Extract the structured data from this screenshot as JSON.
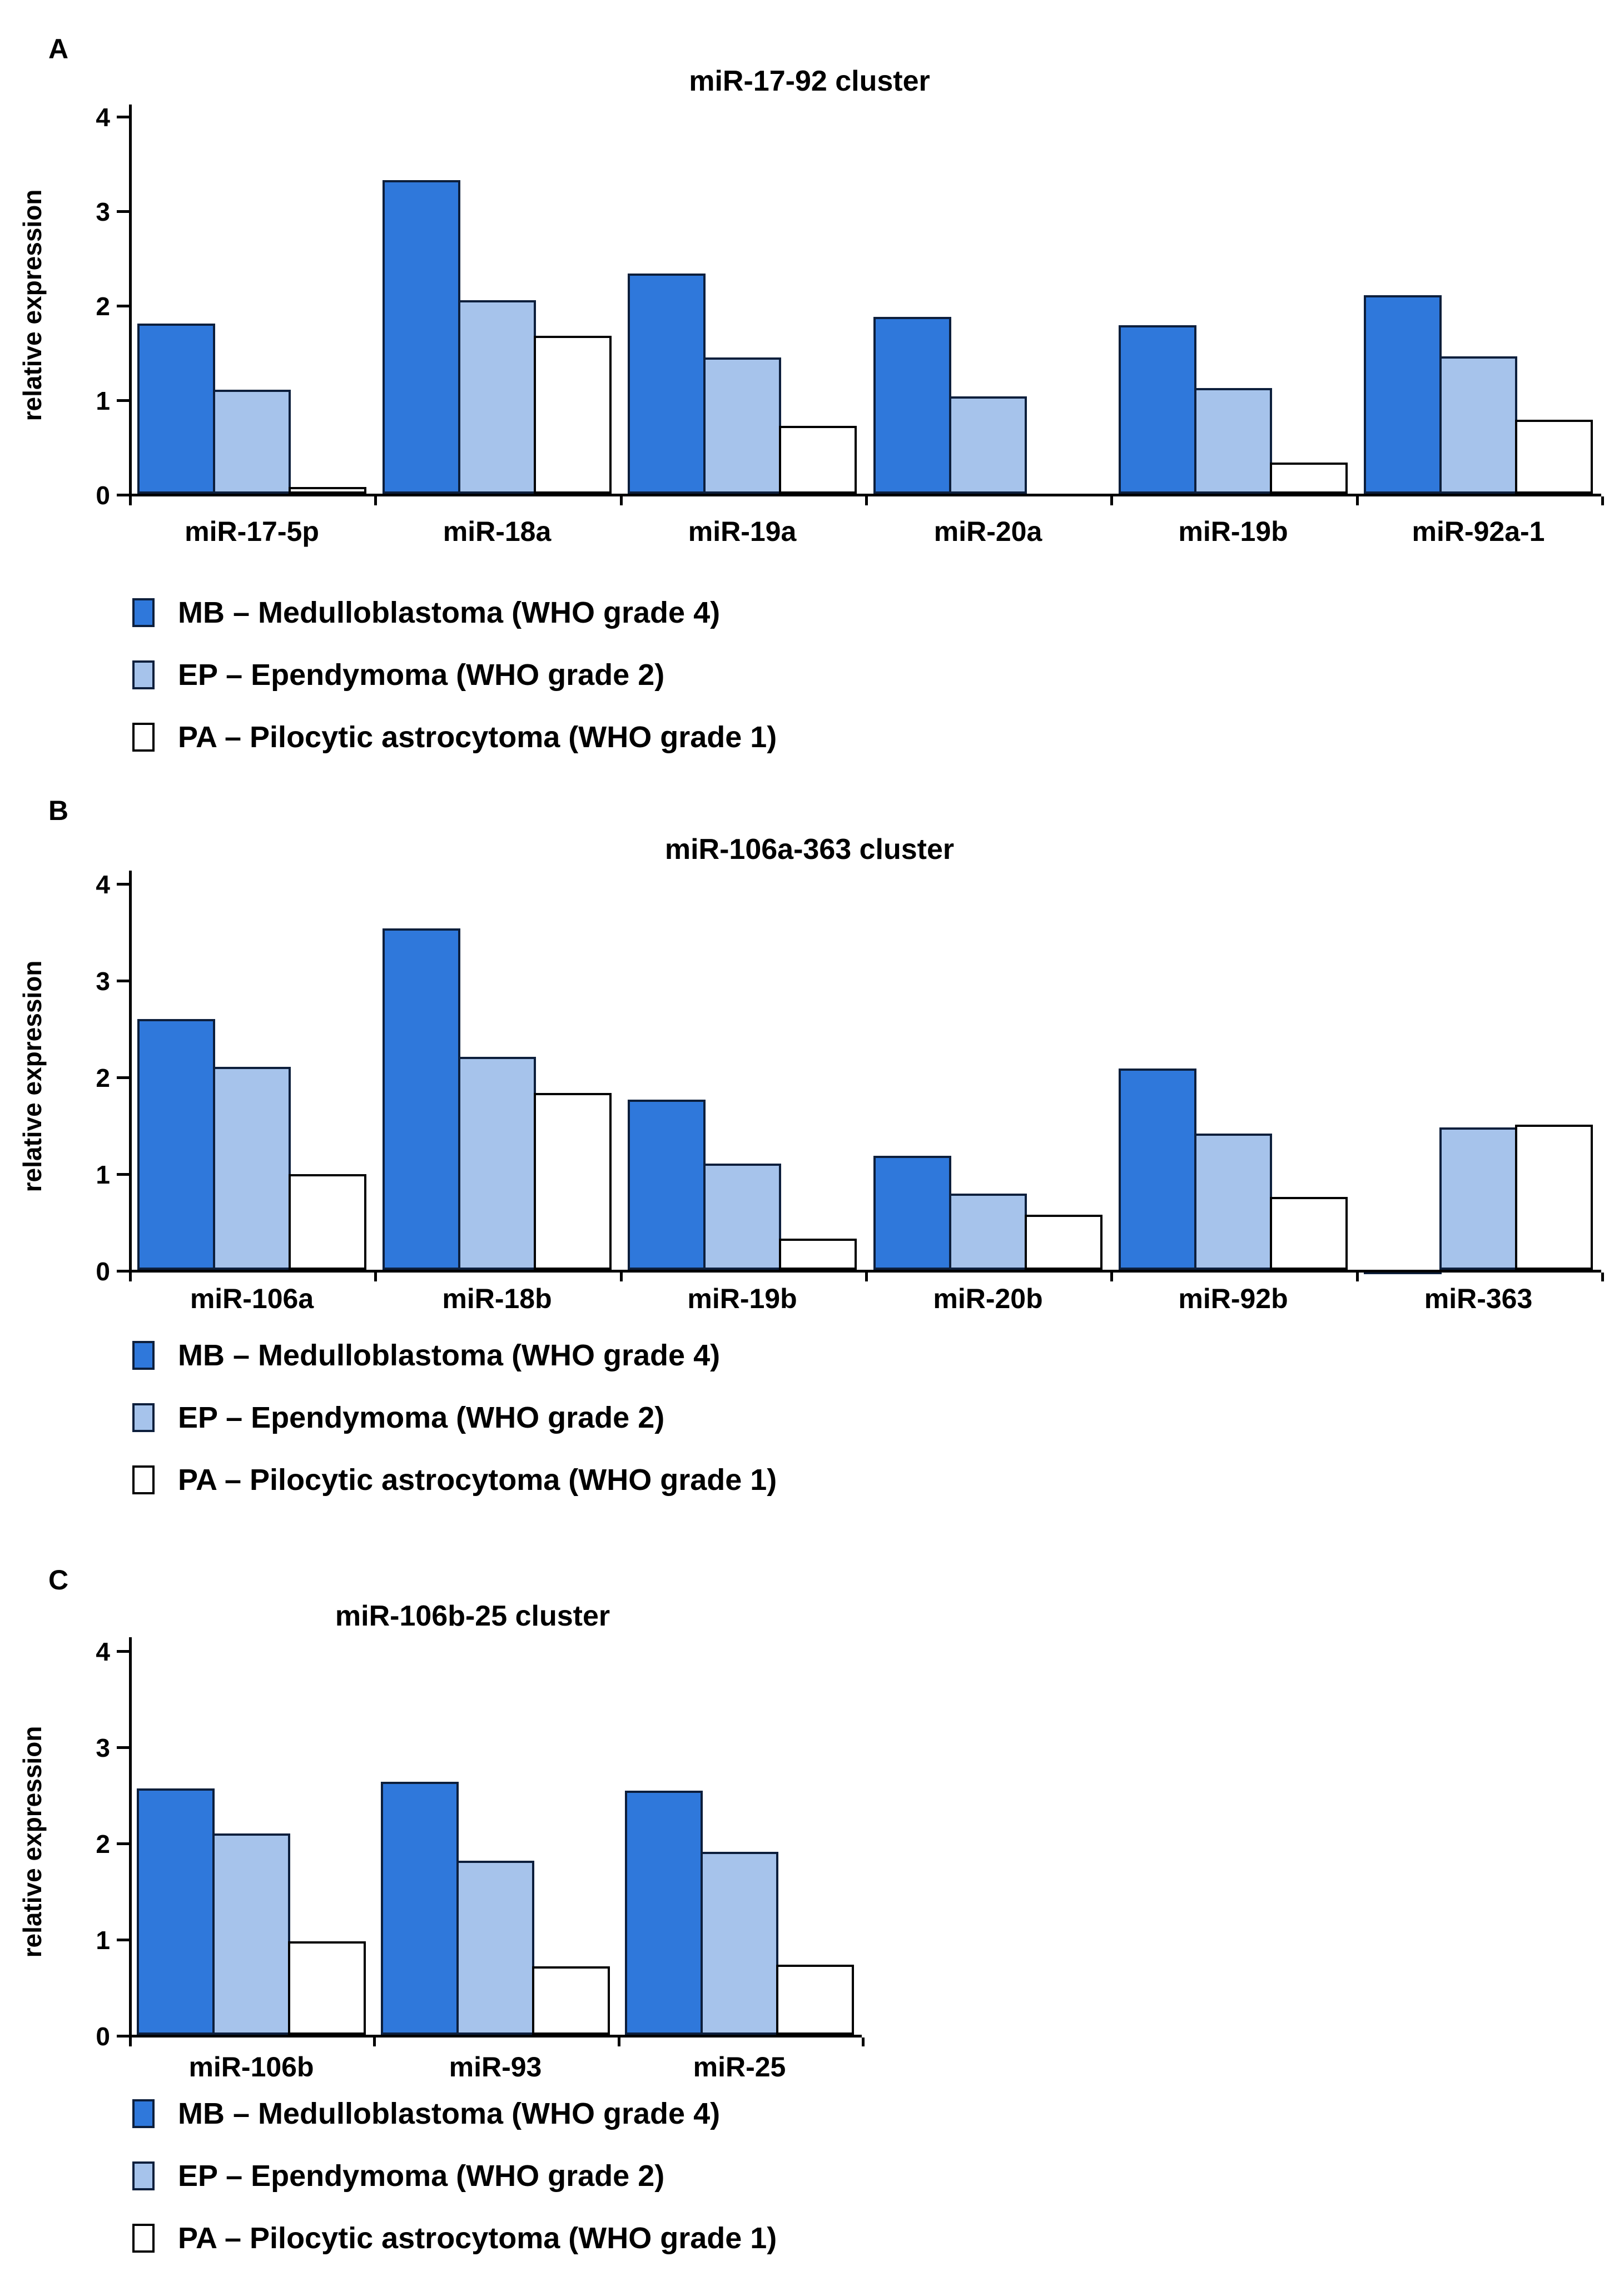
{
  "figure": {
    "background": "#ffffff",
    "panel_letters": [
      "A",
      "B",
      "C"
    ]
  },
  "colors": {
    "mb_fill": "#2F78DB",
    "ep_fill": "#A6C3EB",
    "pa_fill": "#FFFFFF",
    "blue_bar_border": "#0D1F3C",
    "white_bar_border": "#000000",
    "axis": "#000000",
    "text": "#000000"
  },
  "legend": {
    "items": [
      {
        "key": "MB",
        "label": "MB – Medulloblastoma (WHO grade 4)"
      },
      {
        "key": "EP",
        "label": "EP – Ependymoma (WHO grade 2)"
      },
      {
        "key": "PA",
        "label": "PA – Pilocytic astrocytoma (WHO grade 1)"
      }
    ]
  },
  "chart_data": [
    {
      "type": "bar",
      "panel": "A",
      "title": "miR-17-92 cluster",
      "xlabel": "",
      "ylabel": "relative expression",
      "ylim": [
        0,
        4
      ],
      "yticks": [
        0,
        1,
        2,
        3,
        4
      ],
      "grid": false,
      "legend_position": "below",
      "categories": [
        "miR-17-5p",
        "miR-18a",
        "miR-19a",
        "miR-20a",
        "miR-19b",
        "miR-92a-1"
      ],
      "series": [
        {
          "name": "MB",
          "values": [
            1.8,
            3.32,
            2.33,
            1.87,
            1.78,
            2.1
          ]
        },
        {
          "name": "EP",
          "values": [
            1.1,
            2.05,
            1.44,
            1.03,
            1.12,
            1.45
          ]
        },
        {
          "name": "PA",
          "values": [
            0.07,
            1.67,
            0.72,
            0.0,
            0.33,
            0.78
          ]
        }
      ]
    },
    {
      "type": "bar",
      "panel": "B",
      "title": "miR-106a-363 cluster",
      "xlabel": "",
      "ylabel": "relative expression",
      "ylim": [
        0,
        4
      ],
      "yticks": [
        0,
        1,
        2,
        3,
        4
      ],
      "grid": false,
      "legend_position": "below",
      "categories": [
        "miR-106a",
        "miR-18b",
        "miR-19b",
        "miR-20b",
        "miR-92b",
        "miR-363"
      ],
      "series": [
        {
          "name": "MB",
          "values": [
            2.59,
            3.53,
            1.76,
            1.18,
            2.08,
            -0.03
          ]
        },
        {
          "name": "EP",
          "values": [
            2.1,
            2.2,
            1.1,
            0.79,
            1.41,
            1.47
          ]
        },
        {
          "name": "PA",
          "values": [
            0.99,
            1.83,
            0.32,
            0.57,
            0.75,
            1.5
          ]
        }
      ]
    },
    {
      "type": "bar",
      "panel": "C",
      "title": "miR-106b-25 cluster",
      "xlabel": "",
      "ylabel": "relative expression",
      "ylim": [
        0,
        4
      ],
      "yticks": [
        0,
        1,
        2,
        3,
        4
      ],
      "grid": false,
      "legend_position": "below",
      "categories": [
        "miR-106b",
        "miR-93",
        "miR-25"
      ],
      "series": [
        {
          "name": "MB",
          "values": [
            2.56,
            2.63,
            2.54
          ]
        },
        {
          "name": "EP",
          "values": [
            2.09,
            1.81,
            1.9
          ]
        },
        {
          "name": "PA",
          "values": [
            0.97,
            0.71,
            0.73
          ]
        }
      ]
    }
  ]
}
